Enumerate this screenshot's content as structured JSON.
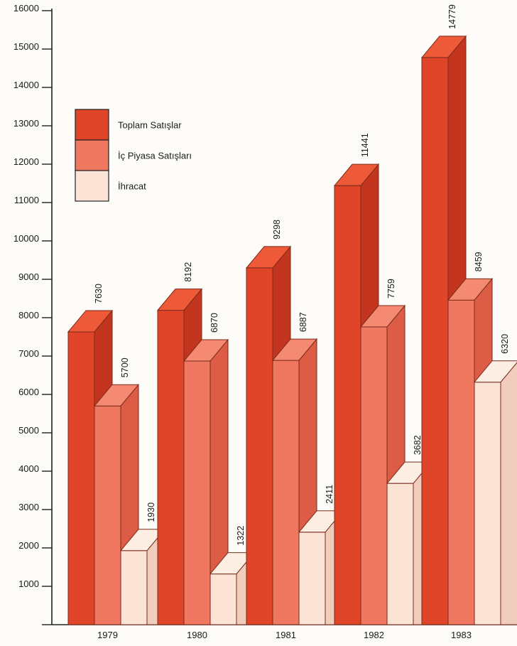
{
  "chart_data": {
    "type": "bar",
    "ylim": [
      0,
      16000
    ],
    "yticks": [
      1000,
      2000,
      3000,
      4000,
      5000,
      6000,
      7000,
      8000,
      9000,
      10000,
      11000,
      12000,
      13000,
      14000,
      15000,
      16000
    ],
    "ytick_labels": [
      "1000",
      "2000",
      "3000",
      "4000",
      "5000",
      "6000",
      "7000",
      "8000",
      "9000",
      "10000",
      "11000",
      "12000",
      "13000",
      "14000",
      "15000",
      "16000"
    ],
    "categories": [
      "1979",
      "1980",
      "1981",
      "1982",
      "1983"
    ],
    "series": [
      {
        "name": "Toplam Satışlar",
        "values": [
          7630,
          8192,
          9298,
          11441,
          14779
        ],
        "color": "#e0452a",
        "side": "#c4351f",
        "top": "#ee5a38"
      },
      {
        "name": "İç Piyasa Satışları",
        "values": [
          5700,
          6870,
          6887,
          7759,
          8459
        ],
        "color": "#f07760",
        "side": "#dd5c45",
        "top": "#f58a72"
      },
      {
        "name": "İhracat",
        "values": [
          1930,
          1322,
          2411,
          3682,
          6320
        ],
        "color": "#fbe3d6",
        "side": "#f0cdbd",
        "top": "#fdeee4"
      }
    ],
    "value_labels": [
      [
        "7630",
        "8192",
        "9298",
        "11441",
        "14779"
      ],
      [
        "5700",
        "6870",
        "6887",
        "7759",
        "8459"
      ],
      [
        "1930",
        "1322",
        "2411",
        "3682",
        "6320"
      ]
    ],
    "legend_position": "top-left",
    "grid": false
  }
}
